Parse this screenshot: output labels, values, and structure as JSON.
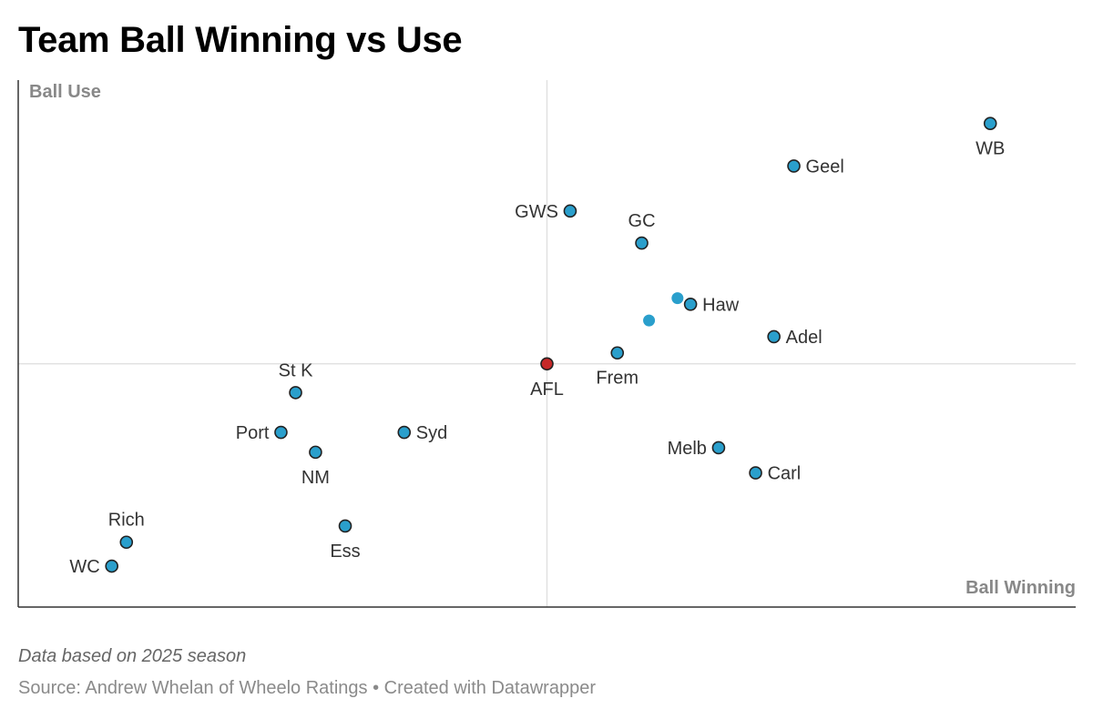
{
  "title": "Team Ball Winning vs Use",
  "note": "Data based on 2025 season",
  "source": "Source: Andrew Whelan of Wheelo Ratings • Created with Datawrapper",
  "colors": {
    "team_point": "#2a9fcc",
    "average_point": "#c62828",
    "unlabeled_point": "#2a9fcc",
    "point_stroke": "#222222",
    "axis_line": "#333333",
    "reference_line": "#dddddd",
    "axis_title": "#888888",
    "label_text": "#333333"
  },
  "chart_data": {
    "type": "scatter",
    "title": "Team Ball Winning vs Use",
    "xlabel": "Ball Winning",
    "ylabel": "Ball Use",
    "xlim": [
      -13,
      13
    ],
    "ylim": [
      -6,
      7
    ],
    "reference_lines": {
      "x": 0,
      "y": 0
    },
    "grid": false,
    "points": [
      {
        "label": "WB",
        "x": 10.9,
        "y": 5.93,
        "label_pos": "below",
        "kind": "team"
      },
      {
        "label": "Geel",
        "x": 6.07,
        "y": 4.88,
        "label_pos": "right",
        "kind": "team"
      },
      {
        "label": "GWS",
        "x": 0.57,
        "y": 3.77,
        "label_pos": "left",
        "kind": "team"
      },
      {
        "label": "GC",
        "x": 2.33,
        "y": 2.98,
        "label_pos": "above",
        "kind": "team"
      },
      {
        "label": "Haw",
        "x": 3.53,
        "y": 1.47,
        "label_pos": "right",
        "kind": "team"
      },
      {
        "label": "Adel",
        "x": 5.58,
        "y": 0.67,
        "label_pos": "right",
        "kind": "team"
      },
      {
        "label": "Frem",
        "x": 1.73,
        "y": 0.27,
        "label_pos": "below",
        "kind": "team"
      },
      {
        "label": "AFL",
        "x": 0.0,
        "y": 0.0,
        "label_pos": "below",
        "kind": "average"
      },
      {
        "label": "",
        "x": 3.21,
        "y": 1.62,
        "label_pos": "none",
        "kind": "unlabeled"
      },
      {
        "label": "",
        "x": 2.51,
        "y": 1.07,
        "label_pos": "none",
        "kind": "unlabeled"
      },
      {
        "label": "St K",
        "x": -6.18,
        "y": -0.71,
        "label_pos": "above",
        "kind": "team"
      },
      {
        "label": "Port",
        "x": -6.54,
        "y": -1.69,
        "label_pos": "left",
        "kind": "team"
      },
      {
        "label": "Syd",
        "x": -3.51,
        "y": -1.69,
        "label_pos": "right",
        "kind": "team"
      },
      {
        "label": "NM",
        "x": -5.69,
        "y": -2.18,
        "label_pos": "below",
        "kind": "team"
      },
      {
        "label": "Melb",
        "x": 4.22,
        "y": -2.07,
        "label_pos": "left",
        "kind": "team"
      },
      {
        "label": "Carl",
        "x": 5.13,
        "y": -2.69,
        "label_pos": "right",
        "kind": "team"
      },
      {
        "label": "Rich",
        "x": -10.34,
        "y": -4.4,
        "label_pos": "above",
        "kind": "team"
      },
      {
        "label": "Ess",
        "x": -4.96,
        "y": -4.0,
        "label_pos": "below",
        "kind": "team"
      },
      {
        "label": "WC",
        "x": -10.7,
        "y": -4.99,
        "label_pos": "left",
        "kind": "team"
      }
    ]
  }
}
